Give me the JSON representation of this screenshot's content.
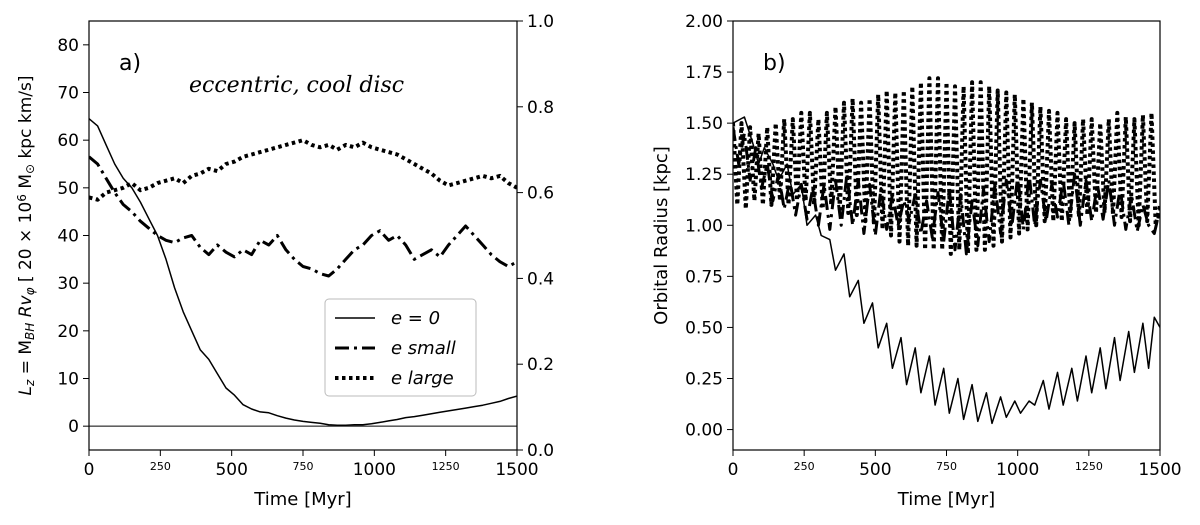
{
  "chart_data": [
    {
      "type": "line",
      "panel_label": "a)",
      "annotation": "eccentric, cool disc",
      "xlabel": "Time [Myr]",
      "ylabel": "L_z = M_BH R v_φ [ 20 × 10^6 M_⊙ kpc km/s]",
      "ylabel_parts": [
        "L",
        "z",
        " = M",
        "BH",
        " Rv",
        "φ",
        " [ 20 × 10",
        "6",
        " M",
        "⊙",
        " kpc km/s]"
      ],
      "xlim": [
        0,
        1500
      ],
      "ylim": [
        -5,
        85
      ],
      "y2lim": [
        0.0,
        1.0
      ],
      "x_ticks": [
        0,
        250,
        500,
        750,
        1000,
        1250,
        1500
      ],
      "x_tick_labels": [
        "0",
        "250",
        "500",
        "750",
        "1000",
        "1250",
        "1500"
      ],
      "y_ticks": [
        0,
        10,
        20,
        30,
        40,
        50,
        60,
        70,
        80
      ],
      "y_tick_labels": [
        "0",
        "10",
        "20",
        "30",
        "40",
        "50",
        "60",
        "70",
        "80"
      ],
      "y2_ticks": [
        0.0,
        0.2,
        0.4,
        0.6,
        0.8,
        1.0
      ],
      "y2_tick_labels": [
        "0.0",
        "0.2",
        "0.4",
        "0.6",
        "0.8",
        "1.0"
      ],
      "hline": 0,
      "legend": [
        "e = 0",
        "e small",
        "e large"
      ],
      "series": [
        {
          "name": "e = 0",
          "style": "solid",
          "x": [
            0,
            30,
            60,
            90,
            120,
            150,
            180,
            210,
            240,
            270,
            300,
            330,
            360,
            390,
            420,
            450,
            480,
            510,
            540,
            570,
            600,
            630,
            660,
            690,
            720,
            750,
            780,
            810,
            840,
            870,
            900,
            930,
            960,
            990,
            1020,
            1050,
            1080,
            1110,
            1140,
            1170,
            1200,
            1230,
            1260,
            1290,
            1320,
            1350,
            1380,
            1410,
            1440,
            1470,
            1500
          ],
          "y": [
            64.5,
            63,
            59,
            55,
            52,
            50,
            47,
            43.5,
            40,
            35,
            29,
            24,
            20,
            16,
            14,
            11,
            8,
            6.5,
            4.5,
            3.6,
            3,
            2.8,
            2.2,
            1.7,
            1.3,
            1.0,
            0.8,
            0.6,
            0.3,
            0.2,
            0.2,
            0.3,
            0.3,
            0.5,
            0.8,
            1.1,
            1.4,
            1.8,
            2,
            2.3,
            2.6,
            2.9,
            3.2,
            3.5,
            3.8,
            4.1,
            4.4,
            4.8,
            5.2,
            5.8,
            6.3
          ]
        },
        {
          "name": "e small",
          "style": "dashdot",
          "x": [
            0,
            30,
            60,
            90,
            120,
            150,
            180,
            210,
            240,
            270,
            300,
            330,
            360,
            390,
            420,
            450,
            480,
            510,
            540,
            570,
            600,
            630,
            660,
            690,
            720,
            750,
            780,
            810,
            840,
            870,
            900,
            930,
            960,
            990,
            1020,
            1050,
            1080,
            1110,
            1140,
            1170,
            1200,
            1230,
            1260,
            1290,
            1320,
            1350,
            1380,
            1410,
            1440,
            1470,
            1500
          ],
          "y": [
            56.5,
            55,
            52,
            49,
            46.5,
            45,
            43,
            41.5,
            40,
            39,
            38.5,
            39.5,
            40,
            37.5,
            36,
            38,
            36.5,
            35.5,
            37,
            36,
            39,
            38,
            40,
            37,
            35,
            33.5,
            33,
            32,
            31.5,
            33,
            35,
            37,
            38,
            40,
            41,
            39,
            40,
            38,
            35,
            36,
            37,
            35.5,
            38,
            40,
            42,
            40,
            38,
            36,
            34.5,
            33.5,
            34.5
          ]
        },
        {
          "name": "e large",
          "style": "dotted",
          "x": [
            0,
            30,
            60,
            90,
            120,
            150,
            180,
            210,
            240,
            270,
            300,
            330,
            360,
            390,
            420,
            450,
            480,
            510,
            540,
            570,
            600,
            630,
            660,
            690,
            720,
            750,
            780,
            810,
            840,
            870,
            900,
            930,
            960,
            990,
            1020,
            1050,
            1080,
            1110,
            1140,
            1170,
            1200,
            1230,
            1260,
            1290,
            1320,
            1350,
            1380,
            1410,
            1440,
            1470,
            1500
          ],
          "y": [
            48,
            47.5,
            49,
            49.5,
            50,
            51,
            49.5,
            50,
            51,
            51.5,
            52,
            51,
            52.5,
            53,
            54,
            53.5,
            55,
            55.5,
            56.5,
            57,
            57.5,
            58,
            58.5,
            59,
            59.5,
            60,
            59,
            58.5,
            59,
            58,
            59,
            58.5,
            59.5,
            58.5,
            58,
            57.5,
            57,
            56,
            55,
            54,
            53,
            51.5,
            50.5,
            51,
            51.5,
            52,
            52.5,
            52,
            52.5,
            51,
            50
          ]
        }
      ]
    },
    {
      "type": "line",
      "panel_label": "b)",
      "xlabel": "Time [Myr]",
      "ylabel": "Orbital Radius [kpc]",
      "xlim": [
        0,
        1500
      ],
      "ylim": [
        -0.1,
        2.0
      ],
      "x_ticks": [
        0,
        250,
        500,
        750,
        1000,
        1250,
        1500
      ],
      "x_tick_labels": [
        "0",
        "250",
        "500",
        "750",
        "1000",
        "1250",
        "1500"
      ],
      "y_ticks": [
        0.0,
        0.25,
        0.5,
        0.75,
        1.0,
        1.25,
        1.5,
        1.75,
        2.0
      ],
      "y_tick_labels": [
        "0.00",
        "0.25",
        "0.50",
        "0.75",
        "1.00",
        "1.25",
        "1.50",
        "1.75",
        "2.00"
      ],
      "series": [
        {
          "name": "e = 0",
          "style": "solid",
          "x": [
            0,
            40,
            70,
            90,
            110,
            140,
            160,
            190,
            210,
            240,
            260,
            290,
            310,
            340,
            360,
            390,
            410,
            440,
            460,
            490,
            510,
            540,
            560,
            590,
            610,
            640,
            660,
            690,
            710,
            740,
            760,
            790,
            810,
            840,
            860,
            890,
            910,
            940,
            960,
            990,
            1010,
            1040,
            1060,
            1090,
            1110,
            1140,
            1160,
            1190,
            1210,
            1240,
            1260,
            1290,
            1310,
            1340,
            1360,
            1390,
            1410,
            1440,
            1460,
            1480,
            1500
          ],
          "y": [
            1.5,
            1.53,
            1.4,
            1.3,
            1.38,
            1.3,
            1.22,
            1.3,
            1.15,
            1.2,
            1.0,
            1.05,
            0.95,
            0.93,
            0.78,
            0.86,
            0.65,
            0.73,
            0.52,
            0.62,
            0.4,
            0.52,
            0.3,
            0.45,
            0.22,
            0.4,
            0.18,
            0.36,
            0.12,
            0.3,
            0.08,
            0.25,
            0.05,
            0.22,
            0.04,
            0.18,
            0.03,
            0.16,
            0.06,
            0.14,
            0.08,
            0.14,
            0.12,
            0.24,
            0.1,
            0.28,
            0.12,
            0.3,
            0.14,
            0.36,
            0.18,
            0.4,
            0.2,
            0.45,
            0.24,
            0.48,
            0.28,
            0.52,
            0.3,
            0.55,
            0.5
          ]
        },
        {
          "name": "e small",
          "style": "dashdot",
          "x": [
            0,
            20,
            40,
            60,
            80,
            100,
            120,
            140,
            160,
            180,
            200,
            220,
            240,
            260,
            280,
            300,
            320,
            340,
            360,
            380,
            400,
            420,
            440,
            460,
            480,
            500,
            520,
            540,
            560,
            580,
            600,
            620,
            640,
            660,
            680,
            700,
            720,
            740,
            760,
            780,
            800,
            820,
            840,
            860,
            880,
            900,
            920,
            940,
            960,
            980,
            1000,
            1020,
            1040,
            1060,
            1080,
            1100,
            1120,
            1140,
            1160,
            1180,
            1200,
            1220,
            1240,
            1260,
            1280,
            1300,
            1320,
            1340,
            1360,
            1380,
            1400,
            1420,
            1440,
            1460,
            1480,
            1500
          ],
          "y": [
            1.48,
            1.3,
            1.45,
            1.22,
            1.38,
            1.18,
            1.3,
            1.12,
            1.25,
            1.08,
            1.22,
            1.05,
            1.2,
            1.03,
            1.18,
            1.0,
            1.2,
            0.98,
            1.22,
            1.0,
            1.25,
            1.0,
            1.22,
            0.96,
            1.2,
            0.95,
            1.18,
            0.98,
            1.15,
            1.0,
            1.12,
            1.02,
            1.15,
            0.96,
            1.12,
            0.94,
            1.16,
            0.92,
            1.18,
            0.88,
            1.15,
            0.86,
            1.12,
            0.9,
            1.18,
            0.92,
            1.2,
            0.96,
            1.22,
            1.0,
            1.24,
            0.98,
            1.25,
            1.0,
            1.22,
            1.02,
            1.2,
            1.04,
            1.22,
            1.0,
            1.25,
            1.0,
            1.22,
            1.02,
            1.2,
            1.03,
            1.22,
            1.0,
            1.18,
            0.98,
            1.15,
            0.97,
            1.1,
            1.0,
            0.96,
            1.08
          ]
        },
        {
          "name": "e large",
          "style": "dotted",
          "x": [
            0,
            15,
            30,
            45,
            60,
            75,
            90,
            105,
            120,
            135,
            150,
            165,
            180,
            195,
            210,
            225,
            240,
            255,
            270,
            285,
            300,
            315,
            330,
            345,
            360,
            375,
            390,
            405,
            420,
            435,
            450,
            465,
            480,
            495,
            510,
            525,
            540,
            555,
            570,
            585,
            600,
            615,
            630,
            645,
            660,
            675,
            690,
            705,
            720,
            735,
            750,
            765,
            780,
            795,
            810,
            825,
            840,
            855,
            870,
            885,
            900,
            915,
            930,
            945,
            960,
            975,
            990,
            1005,
            1020,
            1035,
            1050,
            1065,
            1080,
            1095,
            1110,
            1125,
            1140,
            1155,
            1170,
            1185,
            1200,
            1215,
            1230,
            1245,
            1260,
            1275,
            1290,
            1305,
            1320,
            1335,
            1350,
            1365,
            1380,
            1395,
            1410,
            1425,
            1440,
            1455,
            1470,
            1485,
            1500
          ],
          "y": [
            1.5,
            1.1,
            1.5,
            1.08,
            1.48,
            1.12,
            1.45,
            1.1,
            1.48,
            1.1,
            1.5,
            1.12,
            1.52,
            1.1,
            1.52,
            1.12,
            1.55,
            1.12,
            1.55,
            1.1,
            1.52,
            1.08,
            1.55,
            1.1,
            1.58,
            1.08,
            1.6,
            1.06,
            1.62,
            1.05,
            1.6,
            1.02,
            1.62,
            1.0,
            1.64,
            0.98,
            1.66,
            0.95,
            1.65,
            0.92,
            1.66,
            0.9,
            1.68,
            0.9,
            1.7,
            0.88,
            1.72,
            0.88,
            1.72,
            0.88,
            1.7,
            0.86,
            1.68,
            0.88,
            1.68,
            0.86,
            1.7,
            0.88,
            1.7,
            0.88,
            1.68,
            0.9,
            1.66,
            0.92,
            1.65,
            0.94,
            1.64,
            0.96,
            1.62,
            0.98,
            1.6,
            1.0,
            1.58,
            1.02,
            1.56,
            1.02,
            1.55,
            1.02,
            1.52,
            1.03,
            1.5,
            1.04,
            1.52,
            1.05,
            1.52,
            1.06,
            1.5,
            1.06,
            1.52,
            1.05,
            1.55,
            1.04,
            1.53,
            1.02,
            1.52,
            1.0,
            1.54,
            1.02,
            1.55,
            1.0,
            1.1
          ]
        }
      ]
    }
  ]
}
